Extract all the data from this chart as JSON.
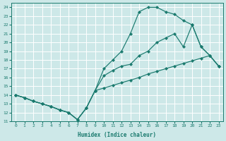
{
  "xlabel": "Humidex (Indice chaleur)",
  "bg_color": "#cde8e8",
  "grid_color": "#ffffff",
  "line_color": "#1a7a6e",
  "xlim": [
    -0.5,
    23.5
  ],
  "ylim": [
    11,
    24.5
  ],
  "yticks": [
    11,
    12,
    13,
    14,
    15,
    16,
    17,
    18,
    19,
    20,
    21,
    22,
    23,
    24
  ],
  "xticks": [
    0,
    1,
    2,
    3,
    4,
    5,
    6,
    7,
    8,
    9,
    10,
    11,
    12,
    13,
    14,
    15,
    16,
    17,
    18,
    19,
    20,
    21,
    22,
    23
  ],
  "line1_x": [
    0,
    1,
    2,
    3,
    4,
    5,
    6,
    7,
    8,
    9,
    10,
    11,
    12,
    13,
    14,
    15,
    16,
    17,
    18,
    19,
    20,
    21,
    22,
    23
  ],
  "line1_y": [
    14.0,
    13.7,
    13.3,
    13.0,
    12.7,
    12.3,
    12.0,
    11.2,
    12.5,
    14.5,
    14.8,
    15.1,
    15.4,
    15.7,
    16.0,
    16.4,
    16.7,
    17.0,
    17.3,
    17.6,
    17.9,
    18.2,
    18.5,
    17.3
  ],
  "line2_x": [
    0,
    1,
    2,
    3,
    4,
    5,
    6,
    7,
    8,
    9,
    10,
    11,
    12,
    13,
    14,
    15,
    16,
    17,
    18,
    19,
    20,
    21,
    22,
    23
  ],
  "line2_y": [
    14.0,
    13.7,
    13.3,
    13.0,
    12.7,
    12.3,
    12.0,
    11.2,
    12.5,
    14.5,
    16.2,
    16.8,
    17.3,
    17.5,
    18.5,
    19.0,
    20.0,
    20.5,
    21.0,
    19.5,
    22.0,
    19.5,
    18.5,
    17.3
  ],
  "line3_x": [
    0,
    1,
    2,
    3,
    4,
    5,
    6,
    7,
    8,
    9,
    10,
    11,
    12,
    13,
    14,
    15,
    16,
    17,
    18,
    19,
    20,
    21,
    22,
    23
  ],
  "line3_y": [
    14.0,
    13.7,
    13.3,
    13.0,
    12.7,
    12.3,
    12.0,
    11.2,
    12.5,
    14.5,
    17.0,
    18.0,
    19.0,
    21.0,
    23.5,
    24.0,
    24.0,
    23.5,
    23.2,
    22.5,
    22.0,
    19.5,
    18.5,
    17.3
  ]
}
